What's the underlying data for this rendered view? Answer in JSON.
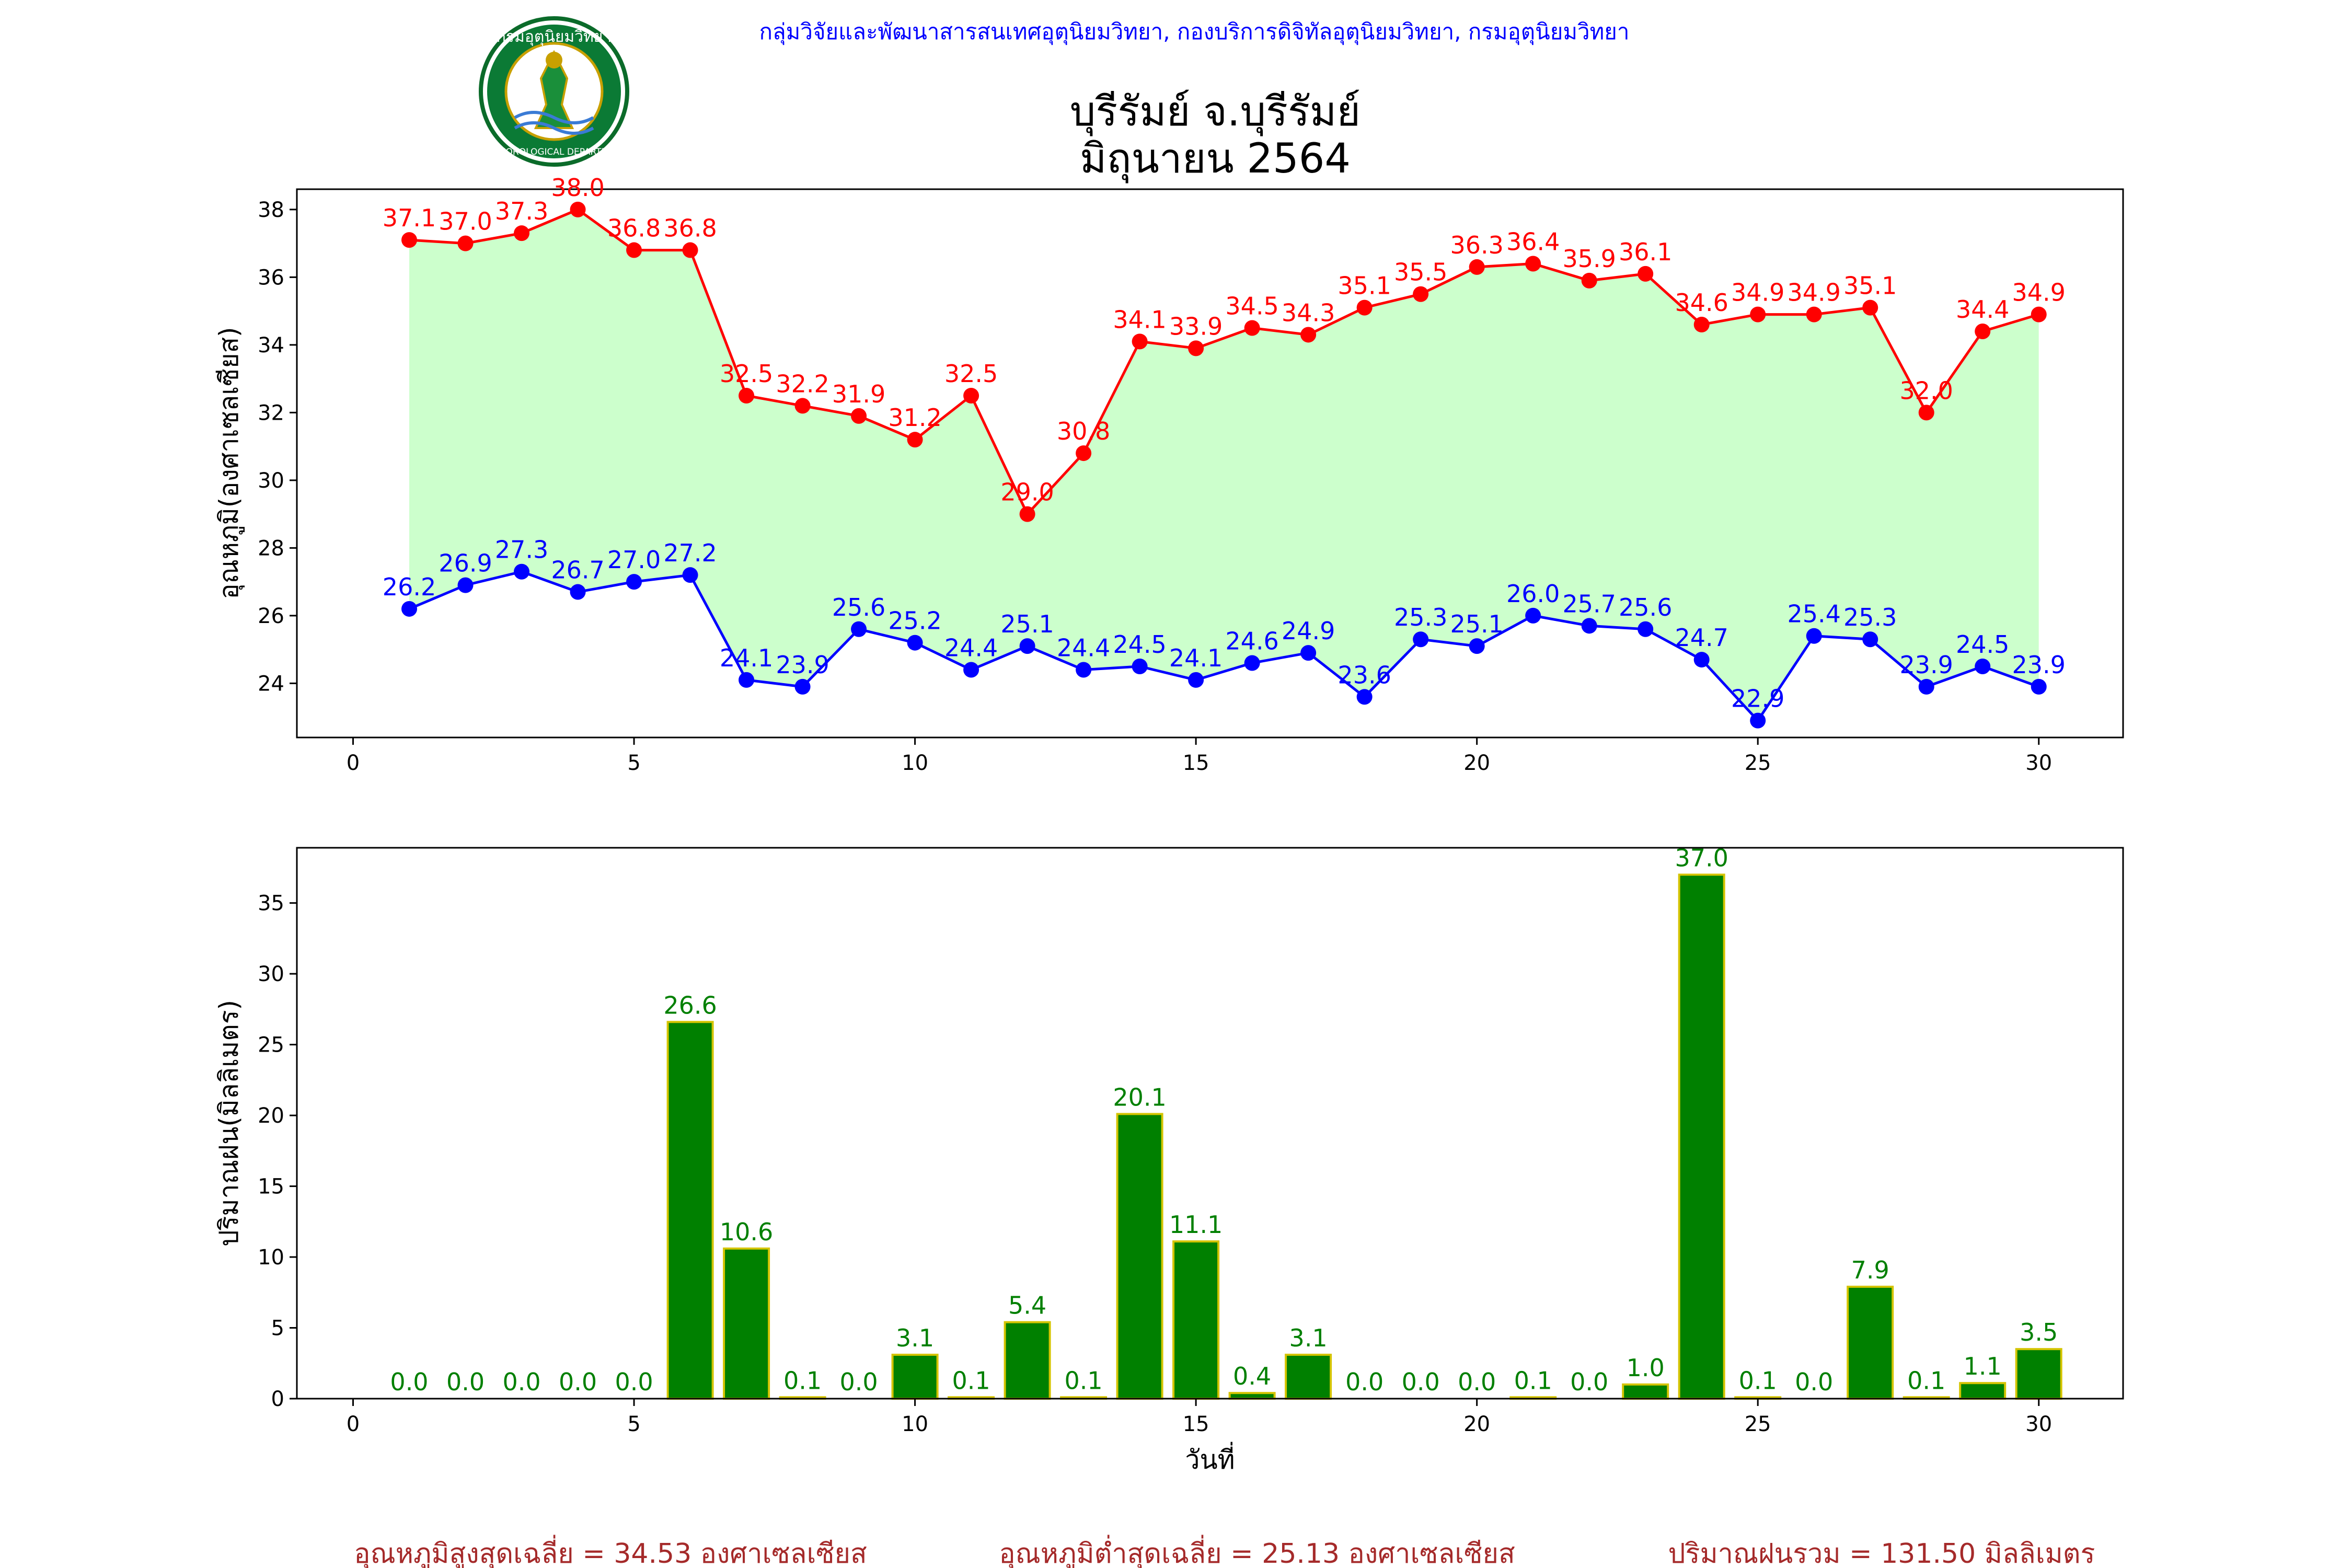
{
  "header": {
    "agency_line": "กลุ่มวิจัยและพัฒนาสารสนเทศอุตุนิยมวิทยา, กองบริการดิจิทัลอุตุนิยมวิทยา, กรมอุตุนิยมวิทยา",
    "title_line1": "บุรีรัมย์ จ.บุรีรัมย์",
    "title_line2": "มิถุนายน 2564",
    "logo_ring_text": "METEOROLOGICAL DEPARTMENT",
    "logo_top_text": "กรมอุตุนิยมวิทยา"
  },
  "chart_data": [
    {
      "type": "line",
      "ylabel": "อุณหภูมิ(องศาเซลเซียส)",
      "xlabel": "",
      "xlim": [
        -1,
        31.5
      ],
      "ylim": [
        22.4,
        38.6
      ],
      "xticks": [
        0,
        5,
        10,
        15,
        20,
        25,
        30
      ],
      "yticks": [
        24,
        26,
        28,
        30,
        32,
        34,
        36,
        38
      ],
      "x": [
        1,
        2,
        3,
        4,
        5,
        6,
        7,
        8,
        9,
        10,
        11,
        12,
        13,
        14,
        15,
        16,
        17,
        18,
        19,
        20,
        21,
        22,
        23,
        24,
        25,
        26,
        27,
        28,
        29,
        30
      ],
      "series": [
        {
          "role": "max",
          "color": "#ff0000",
          "values": [
            37.1,
            37.0,
            37.3,
            38.0,
            36.8,
            36.8,
            32.5,
            32.2,
            31.9,
            31.2,
            32.5,
            29.0,
            30.8,
            34.1,
            33.9,
            34.5,
            34.3,
            35.1,
            35.5,
            36.3,
            36.4,
            35.9,
            36.1,
            34.6,
            34.9,
            34.9,
            35.1,
            32.0,
            34.4,
            34.9
          ]
        },
        {
          "role": "min",
          "color": "#0000ff",
          "values": [
            26.2,
            26.9,
            27.3,
            26.7,
            27.0,
            27.2,
            24.1,
            23.9,
            25.6,
            25.2,
            24.4,
            25.1,
            24.4,
            24.5,
            24.1,
            24.6,
            24.9,
            23.6,
            25.3,
            25.1,
            26.0,
            25.7,
            25.6,
            24.7,
            22.9,
            25.4,
            25.3,
            23.9,
            24.5,
            23.9
          ]
        }
      ],
      "fill_color": "#ccffcc",
      "grid": false
    },
    {
      "type": "bar",
      "ylabel": "ปริมาณฝน(มิลลิเมตร)",
      "xlabel": "วันที่",
      "xlim": [
        -1,
        31.5
      ],
      "ylim": [
        0,
        38.9
      ],
      "xticks": [
        0,
        5,
        10,
        15,
        20,
        25,
        30
      ],
      "yticks": [
        0,
        5,
        10,
        15,
        20,
        25,
        30,
        35
      ],
      "x": [
        1,
        2,
        3,
        4,
        5,
        6,
        7,
        8,
        9,
        10,
        11,
        12,
        13,
        14,
        15,
        16,
        17,
        18,
        19,
        20,
        21,
        22,
        23,
        24,
        25,
        26,
        27,
        28,
        29,
        30
      ],
      "values": [
        0.0,
        0.0,
        0.0,
        0.0,
        0.0,
        26.6,
        10.6,
        0.1,
        0.0,
        3.1,
        0.1,
        5.4,
        0.1,
        20.1,
        11.1,
        0.4,
        3.1,
        0.0,
        0.0,
        0.0,
        0.1,
        0.0,
        1.0,
        37.0,
        0.1,
        0.0,
        7.9,
        0.1,
        1.1,
        3.5
      ],
      "bar_color": "#008000",
      "edge_color": "#d4c400",
      "grid": false
    }
  ],
  "footer": {
    "avg_max": "อุณหภูมิสูงสุดเฉลี่ย = 34.53 องศาเซลเซียส",
    "avg_min": "อุณหภูมิต่ำสุดเฉลี่ย = 25.13 องศาเซลเซียส",
    "total_rain": "ปริมาณฝนรวม = 131.50 มิลลิเมตร"
  }
}
